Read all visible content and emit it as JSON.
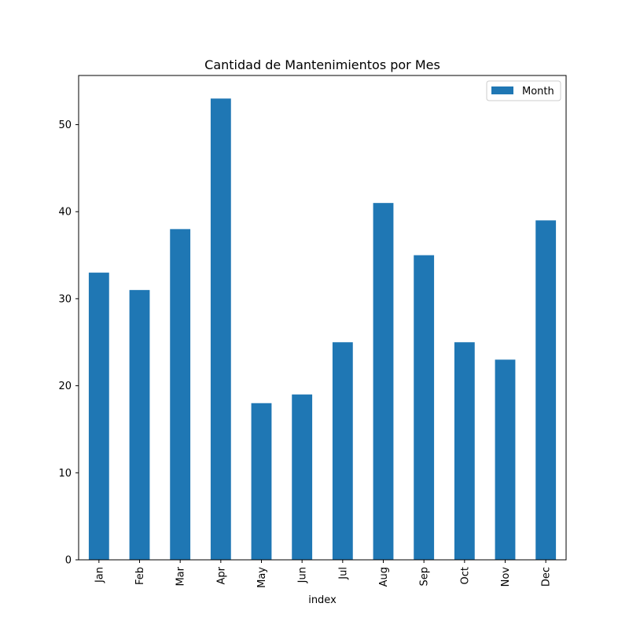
{
  "chart_data": {
    "type": "bar",
    "title": "Cantidad de Mantenimientos por Mes",
    "xlabel": "index",
    "ylabel": "",
    "categories": [
      "Jan",
      "Feb",
      "Mar",
      "Apr",
      "May",
      "Jun",
      "Jul",
      "Aug",
      "Sep",
      "Oct",
      "Nov",
      "Dec"
    ],
    "series": [
      {
        "name": "Month",
        "values": [
          33,
          31,
          38,
          53,
          18,
          19,
          25,
          41,
          35,
          25,
          23,
          39
        ],
        "color": "#1f77b4"
      }
    ],
    "yticks": [
      0,
      10,
      20,
      30,
      40,
      50
    ],
    "ylim": [
      0,
      55.65
    ],
    "grid": false,
    "legend_position": "top-right"
  }
}
